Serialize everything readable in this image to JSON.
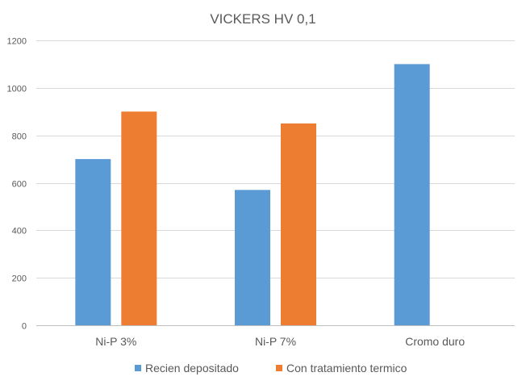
{
  "chart_data": {
    "type": "bar",
    "title": "VICKERS HV 0,1",
    "xlabel": "",
    "ylabel": "",
    "categories": [
      "Ni-P 3%",
      "Ni-P 7%",
      "Cromo duro"
    ],
    "series": [
      {
        "name": "Recien depositado",
        "color": "#5b9bd5",
        "values": [
          700,
          570,
          1100
        ]
      },
      {
        "name": "Con tratamiento termico",
        "color": "#ed7d31",
        "values": [
          900,
          850,
          null
        ]
      }
    ],
    "ylim": [
      0,
      1200
    ],
    "yticks": [
      0,
      200,
      400,
      600,
      800,
      1000,
      1200
    ],
    "grid": true,
    "legend_position": "bottom"
  }
}
